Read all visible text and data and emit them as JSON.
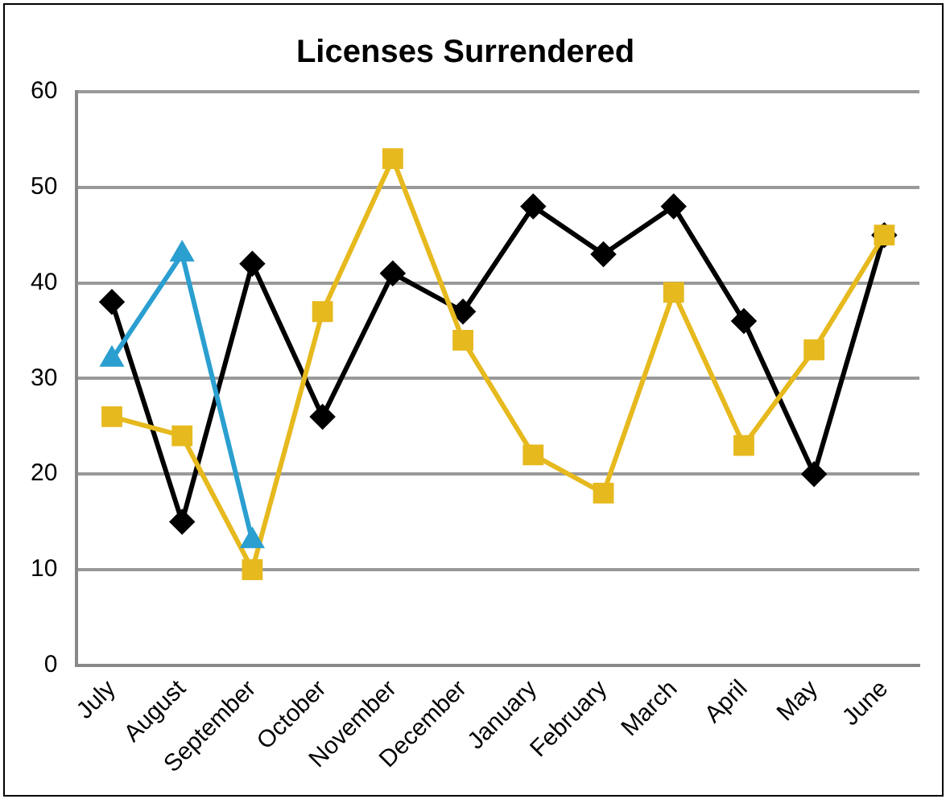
{
  "chart_data": {
    "type": "line",
    "title": "Licenses Surrendered",
    "categories": [
      "July",
      "August",
      "September",
      "October",
      "November",
      "December",
      "January",
      "February",
      "March",
      "April",
      "May",
      "June"
    ],
    "series": [
      {
        "color": "#000000",
        "marker": "diamond",
        "values": [
          38,
          15,
          42,
          26,
          41,
          37,
          48,
          43,
          48,
          36,
          20,
          45
        ]
      },
      {
        "color": "#e6b91e",
        "marker": "square",
        "values": [
          26,
          24,
          10,
          37,
          53,
          34,
          22,
          18,
          39,
          23,
          33,
          45
        ]
      },
      {
        "color": "#2a9fd0",
        "marker": "triangle",
        "values": [
          32,
          43,
          13,
          null,
          null,
          null,
          null,
          null,
          null,
          null,
          null,
          null
        ]
      }
    ],
    "ylim": [
      0,
      60
    ],
    "yticks": [
      0,
      10,
      20,
      30,
      40,
      50,
      60
    ],
    "grid": "y",
    "legend": false
  }
}
